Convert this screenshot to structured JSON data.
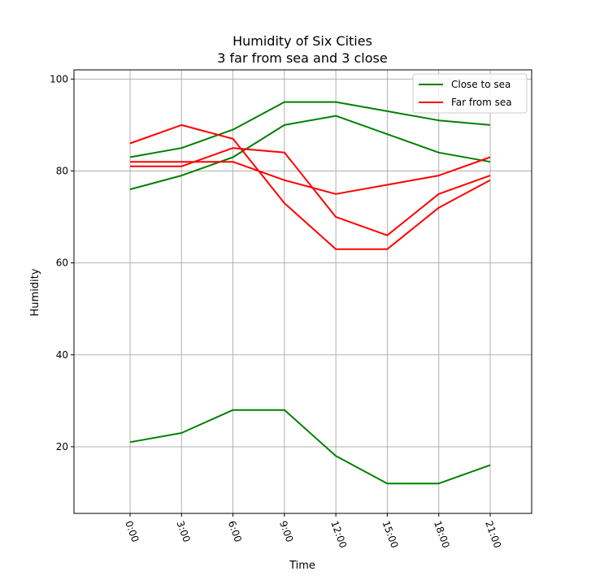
{
  "chart_data": {
    "type": "line",
    "title": "Humidity of Six Cities",
    "subtitle": "3 far from sea and 3 close",
    "xlabel": "Time",
    "ylabel": "Humidity",
    "categories": [
      "0:00",
      "3:00",
      "6:00",
      "9:00",
      "12:00",
      "15:00",
      "18:00",
      "21:00"
    ],
    "ylim": [
      5.5,
      102
    ],
    "yticks": [
      20,
      40,
      60,
      80,
      100
    ],
    "grid": true,
    "legend_position": "top-right",
    "colors": {
      "close": "#008000",
      "far": "#ff0000",
      "grid": "#b0b0b0"
    },
    "legend": [
      {
        "label": "Close to sea",
        "group": "close"
      },
      {
        "label": "Far from sea",
        "group": "far"
      }
    ],
    "series": [
      {
        "group": "close",
        "values": [
          83,
          85,
          89,
          95,
          95,
          93,
          91,
          90
        ]
      },
      {
        "group": "close",
        "values": [
          76,
          79,
          83,
          90,
          92,
          88,
          84,
          82
        ]
      },
      {
        "group": "close",
        "values": [
          21,
          23,
          28,
          28,
          18,
          12,
          12,
          16
        ]
      },
      {
        "group": "far",
        "values": [
          86,
          90,
          87,
          73,
          63,
          63,
          72,
          78
        ]
      },
      {
        "group": "far",
        "values": [
          82,
          82,
          82,
          78,
          75,
          77,
          79,
          83
        ]
      },
      {
        "group": "far",
        "values": [
          81,
          81,
          85,
          84,
          70,
          66,
          75,
          79
        ]
      }
    ]
  }
}
